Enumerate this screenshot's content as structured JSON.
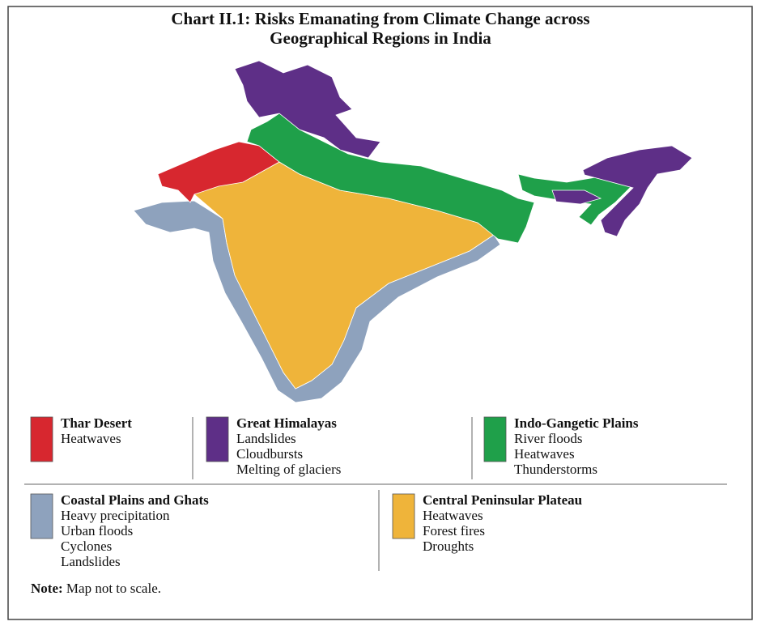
{
  "title": [
    "Chart II.1: Risks Emanating from Climate Change across",
    "Geographical Regions in India"
  ],
  "legend": [
    {
      "name": "Thar Desert",
      "color": "#d7272f",
      "risks": [
        "Heatwaves"
      ]
    },
    {
      "name": "Great Himalayas",
      "color": "#5e2f87",
      "risks": [
        "Landslides",
        "Cloudbursts",
        "Melting of glaciers"
      ]
    },
    {
      "name": "Indo-Gangetic Plains",
      "color": "#1fa04a",
      "risks": [
        "River floods",
        "Heatwaves",
        "Thunderstorms"
      ]
    },
    {
      "name": "Coastal Plains and Ghats",
      "color": "#8ea2bd",
      "risks": [
        "Heavy precipitation",
        "Urban floods",
        "Cyclones",
        "Landslides"
      ]
    },
    {
      "name": "Central Peninsular Plateau",
      "color": "#efb43a",
      "risks": [
        "Heatwaves",
        "Forest fires",
        "Droughts"
      ]
    }
  ],
  "note": {
    "label": "Note:",
    "text": "Map not to scale."
  }
}
